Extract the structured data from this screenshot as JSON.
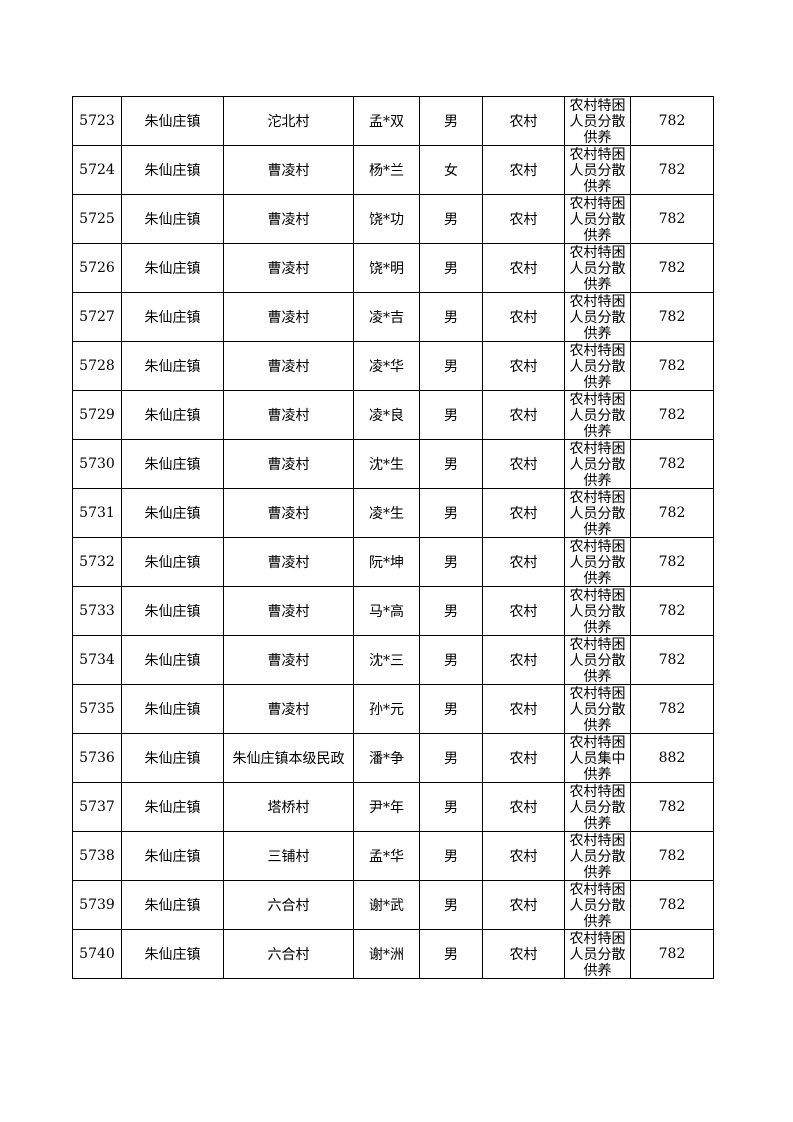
{
  "table": {
    "rows": [
      [
        5723,
        "朱仙庄镇",
        "沱北村",
        "孟*双",
        "男",
        "农村",
        "农村特困人员分散供养",
        782
      ],
      [
        5724,
        "朱仙庄镇",
        "曹凌村",
        "杨*兰",
        "女",
        "农村",
        "农村特困人员分散供养",
        782
      ],
      [
        5725,
        "朱仙庄镇",
        "曹凌村",
        "饶*功",
        "男",
        "农村",
        "农村特困人员分散供养",
        782
      ],
      [
        5726,
        "朱仙庄镇",
        "曹凌村",
        "饶*明",
        "男",
        "农村",
        "农村特困人员分散供养",
        782
      ],
      [
        5727,
        "朱仙庄镇",
        "曹凌村",
        "凌*吉",
        "男",
        "农村",
        "农村特困人员分散供养",
        782
      ],
      [
        5728,
        "朱仙庄镇",
        "曹凌村",
        "凌*华",
        "男",
        "农村",
        "农村特困人员分散供养",
        782
      ],
      [
        5729,
        "朱仙庄镇",
        "曹凌村",
        "凌*良",
        "男",
        "农村",
        "农村特困人员分散供养",
        782
      ],
      [
        5730,
        "朱仙庄镇",
        "曹凌村",
        "沈*生",
        "男",
        "农村",
        "农村特困人员分散供养",
        782
      ],
      [
        5731,
        "朱仙庄镇",
        "曹凌村",
        "凌*生",
        "男",
        "农村",
        "农村特困人员分散供养",
        782
      ],
      [
        5732,
        "朱仙庄镇",
        "曹凌村",
        "阮*坤",
        "男",
        "农村",
        "农村特困人员分散供养",
        782
      ],
      [
        5733,
        "朱仙庄镇",
        "曹凌村",
        "马*高",
        "男",
        "农村",
        "农村特困人员分散供养",
        782
      ],
      [
        5734,
        "朱仙庄镇",
        "曹凌村",
        "沈*三",
        "男",
        "农村",
        "农村特困人员分散供养",
        782
      ],
      [
        5735,
        "朱仙庄镇",
        "曹凌村",
        "孙*元",
        "男",
        "农村",
        "农村特困人员分散供养",
        782
      ],
      [
        5736,
        "朱仙庄镇",
        "朱仙庄镇本级民政",
        "潘*争",
        "男",
        "农村",
        "农村特困人员集中供养",
        882
      ],
      [
        5737,
        "朱仙庄镇",
        "塔桥村",
        "尹*年",
        "男",
        "农村",
        "农村特困人员分散供养",
        782
      ],
      [
        5738,
        "朱仙庄镇",
        "三铺村",
        "孟*华",
        "男",
        "农村",
        "农村特困人员分散供养",
        782
      ],
      [
        5739,
        "朱仙庄镇",
        "六合村",
        "谢*武",
        "男",
        "农村",
        "农村特困人员分散供养",
        782
      ],
      [
        5740,
        "朱仙庄镇",
        "六合村",
        "谢*洲",
        "男",
        "农村",
        "农村特困人员分散供养",
        782
      ]
    ]
  }
}
